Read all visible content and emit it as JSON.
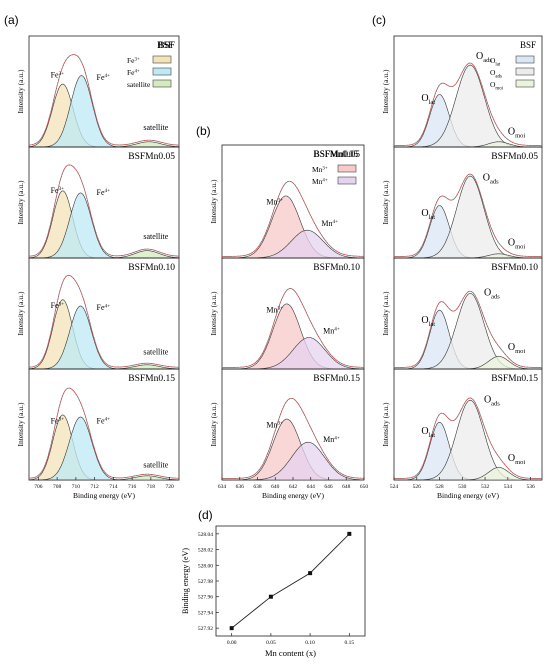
{
  "panel_labels": {
    "a": "(a)",
    "b": "(b)",
    "c": "(c)",
    "d": "(d)"
  },
  "chart_data": [
    {
      "panel": "(a)",
      "type": "line",
      "ylabel": "Intensity (a.u.)",
      "xlabel": "Binding energy (eV)",
      "xlim": [
        705,
        721
      ],
      "xticks": [
        "706",
        "708",
        "710",
        "712",
        "714",
        "716",
        "718",
        "720"
      ],
      "legend": [
        {
          "label_main": "Fe",
          "label_sup": "3+",
          "color": "#f3e3b8"
        },
        {
          "label_main": "Fe",
          "label_sup": "4+",
          "color": "#bfe9f6"
        },
        {
          "label_main": "satellite",
          "label_sup": "",
          "color": "#d3ebbd"
        }
      ],
      "legend_title": "BSF",
      "subplots": [
        {
          "sample": "BSF",
          "peaks": [
            {
              "center": 708.6,
              "sigma": 1.1,
              "height": 0.6,
              "color": "#f3e3b8"
            },
            {
              "center": 710.6,
              "sigma": 1.15,
              "height": 0.68,
              "color": "#bfe9f6"
            },
            {
              "center": 717.8,
              "sigma": 1.3,
              "height": 0.05,
              "color": "#d3ebbd"
            }
          ],
          "labels": [
            {
              "main": "Fe",
              "sup": "3+",
              "at": 707.3,
              "h": 0.66
            },
            {
              "main": "Fe",
              "sup": "4+",
              "at": 712.2,
              "h": 0.64
            },
            {
              "main": "satellite",
              "sup": "",
              "at": 717.2,
              "h": 0.16
            }
          ]
        },
        {
          "sample": "BSFMn0.05",
          "peaks": [
            {
              "center": 708.6,
              "sigma": 1.05,
              "height": 0.64,
              "color": "#f3e3b8"
            },
            {
              "center": 710.5,
              "sigma": 1.15,
              "height": 0.62,
              "color": "#bfe9f6"
            },
            {
              "center": 717.6,
              "sigma": 1.3,
              "height": 0.07,
              "color": "#d3ebbd"
            }
          ],
          "labels": [
            {
              "main": "Fe",
              "sup": "3+",
              "at": 707.3,
              "h": 0.62
            },
            {
              "main": "Fe",
              "sup": "4+",
              "at": 712.2,
              "h": 0.6
            },
            {
              "main": "satellite",
              "sup": "",
              "at": 717.2,
              "h": 0.18
            }
          ]
        },
        {
          "sample": "BSFMn0.10",
          "peaks": [
            {
              "center": 708.6,
              "sigma": 1.05,
              "height": 0.66,
              "color": "#f3e3b8"
            },
            {
              "center": 710.5,
              "sigma": 1.15,
              "height": 0.6,
              "color": "#bfe9f6"
            },
            {
              "center": 717.6,
              "sigma": 1.3,
              "height": 0.04,
              "color": "#d3ebbd"
            }
          ],
          "labels": [
            {
              "main": "Fe",
              "sup": "3+",
              "at": 707.3,
              "h": 0.58
            },
            {
              "main": "Fe",
              "sup": "4+",
              "at": 712.2,
              "h": 0.56
            },
            {
              "main": "satellite",
              "sup": "",
              "at": 717.2,
              "h": 0.14
            }
          ]
        },
        {
          "sample": "BSFMn0.15",
          "peaks": [
            {
              "center": 708.6,
              "sigma": 1.05,
              "height": 0.62,
              "color": "#f3e3b8"
            },
            {
              "center": 710.5,
              "sigma": 1.2,
              "height": 0.6,
              "color": "#bfe9f6"
            },
            {
              "center": 717.6,
              "sigma": 1.3,
              "height": 0.04,
              "color": "#d3ebbd"
            }
          ],
          "labels": [
            {
              "main": "Fe",
              "sup": "3+",
              "at": 707.3,
              "h": 0.54
            },
            {
              "main": "Fe",
              "sup": "4+",
              "at": 712.2,
              "h": 0.54
            },
            {
              "main": "satellite",
              "sup": "",
              "at": 717.2,
              "h": 0.12
            }
          ]
        }
      ]
    },
    {
      "panel": "(b)",
      "type": "line",
      "ylabel": "Intensity (a.u.)",
      "xlabel": "Binding energy (eV)",
      "xlim": [
        634,
        650
      ],
      "xticks": [
        "634",
        "636",
        "638",
        "640",
        "642",
        "644",
        "646",
        "648",
        "650"
      ],
      "legend": [
        {
          "label_main": "Mn",
          "label_sup": "3+",
          "color": "#f8c9c9"
        },
        {
          "label_main": "Mn",
          "label_sup": "4+",
          "color": "#e5d3ef"
        }
      ],
      "legend_title": "BSFMn0.05",
      "subplots": [
        {
          "sample": "BSFMn0.05",
          "peaks": [
            {
              "center": 641.2,
              "sigma": 1.6,
              "height": 0.58,
              "color": "#f8c9c9"
            },
            {
              "center": 643.6,
              "sigma": 1.8,
              "height": 0.26,
              "color": "#e5d3ef"
            }
          ],
          "labels": [
            {
              "main": "Mn",
              "sup": "3+",
              "at": 639.0,
              "h": 0.5
            },
            {
              "main": "Mn",
              "sup": "4+",
              "at": 645.2,
              "h": 0.3
            }
          ]
        },
        {
          "sample": "BSFMn0.10",
          "peaks": [
            {
              "center": 641.3,
              "sigma": 1.55,
              "height": 0.62,
              "color": "#f8c9c9"
            },
            {
              "center": 643.8,
              "sigma": 1.8,
              "height": 0.3,
              "color": "#e5d3ef"
            }
          ],
          "labels": [
            {
              "main": "Mn",
              "sup": "3+",
              "at": 639.0,
              "h": 0.54
            },
            {
              "main": "Mn",
              "sup": "4+",
              "at": 645.4,
              "h": 0.34
            }
          ]
        },
        {
          "sample": "BSFMn0.15",
          "peaks": [
            {
              "center": 641.3,
              "sigma": 1.55,
              "height": 0.58,
              "color": "#f8c9c9"
            },
            {
              "center": 643.7,
              "sigma": 1.85,
              "height": 0.36,
              "color": "#e5d3ef"
            }
          ],
          "labels": [
            {
              "main": "Mn",
              "sup": "3+",
              "at": 639.0,
              "h": 0.5
            },
            {
              "main": "Mn",
              "sup": "4+",
              "at": 645.4,
              "h": 0.36
            }
          ]
        }
      ]
    },
    {
      "panel": "(c)",
      "type": "line",
      "ylabel": "Intensity (a.u.)",
      "xlabel": "Binding energy (eV)",
      "xlim": [
        524,
        537
      ],
      "xticks": [
        "524",
        "526",
        "528",
        "530",
        "532",
        "534",
        "536"
      ],
      "legend": [
        {
          "label_main": "O",
          "label_sub": "lat",
          "color": "#dbe7f4"
        },
        {
          "label_main": "O",
          "label_sub": "ads",
          "color": "#ececec"
        },
        {
          "label_main": "O",
          "label_sub": "moi",
          "color": "#eaf3dc"
        }
      ],
      "legend_title": "BSF",
      "subplots": [
        {
          "sample": "",
          "peaks": [
            {
              "center": 528.0,
              "sigma": 0.85,
              "height": 0.5,
              "color": "#dbe7f4"
            },
            {
              "center": 530.7,
              "sigma": 1.25,
              "height": 0.78,
              "color": "#ececec"
            },
            {
              "center": 533.2,
              "sigma": 0.9,
              "height": 0.05,
              "color": "#eaf3dc"
            }
          ],
          "labels": [
            {
              "main": "O",
              "sub": "lat",
              "at": 526.4,
              "h": 0.44
            },
            {
              "main": "O",
              "sub": "ads",
              "at": 531.2,
              "h": 0.84
            },
            {
              "main": "O",
              "sub": "moi",
              "at": 534.0,
              "h": 0.12
            }
          ]
        },
        {
          "sample": "BSFMn0.05",
          "peaks": [
            {
              "center": 528.0,
              "sigma": 0.85,
              "height": 0.5,
              "color": "#dbe7f4"
            },
            {
              "center": 530.7,
              "sigma": 1.2,
              "height": 0.78,
              "color": "#ececec"
            },
            {
              "center": 533.2,
              "sigma": 0.9,
              "height": 0.04,
              "color": "#eaf3dc"
            }
          ],
          "labels": [
            {
              "main": "O",
              "sub": "lat",
              "at": 526.4,
              "h": 0.4
            },
            {
              "main": "O",
              "sub": "ads",
              "at": 531.8,
              "h": 0.74
            },
            {
              "main": "O",
              "sub": "moi",
              "at": 534.0,
              "h": 0.12
            }
          ]
        },
        {
          "sample": "BSFMn0.10",
          "peaks": [
            {
              "center": 528.0,
              "sigma": 0.85,
              "height": 0.56,
              "color": "#dbe7f4"
            },
            {
              "center": 530.7,
              "sigma": 1.2,
              "height": 0.72,
              "color": "#ececec"
            },
            {
              "center": 533.2,
              "sigma": 0.9,
              "height": 0.12,
              "color": "#eaf3dc"
            }
          ],
          "labels": [
            {
              "main": "O",
              "sub": "lat",
              "at": 526.4,
              "h": 0.44
            },
            {
              "main": "O",
              "sub": "ads",
              "at": 531.9,
              "h": 0.7
            },
            {
              "main": "O",
              "sub": "moi",
              "at": 534.0,
              "h": 0.18
            }
          ]
        },
        {
          "sample": "BSFMn0.15",
          "peaks": [
            {
              "center": 528.0,
              "sigma": 0.85,
              "height": 0.55,
              "color": "#dbe7f4"
            },
            {
              "center": 530.7,
              "sigma": 1.2,
              "height": 0.76,
              "color": "#ececec"
            },
            {
              "center": 533.2,
              "sigma": 0.9,
              "height": 0.12,
              "color": "#eaf3dc"
            }
          ],
          "labels": [
            {
              "main": "O",
              "sub": "lat",
              "at": 526.4,
              "h": 0.44
            },
            {
              "main": "O",
              "sub": "ads",
              "at": 531.9,
              "h": 0.74
            },
            {
              "main": "O",
              "sub": "moi",
              "at": 534.0,
              "h": 0.18
            }
          ]
        }
      ]
    },
    {
      "panel": "(d)",
      "type": "line",
      "xlabel": "Mn content (x)",
      "ylabel": "Binding energy (eV)",
      "x": [
        0.0,
        0.05,
        0.1,
        0.15
      ],
      "y": [
        527.92,
        527.96,
        527.99,
        528.04
      ],
      "xlim": [
        -0.02,
        0.17
      ],
      "ylim": [
        527.91,
        528.05
      ],
      "xticks": [
        "0.00",
        "0.05",
        "0.10",
        "0.15"
      ],
      "yticks": [
        "527.92",
        "527.94",
        "527.96",
        "527.98",
        "528.00",
        "528.02",
        "528.04"
      ]
    }
  ]
}
